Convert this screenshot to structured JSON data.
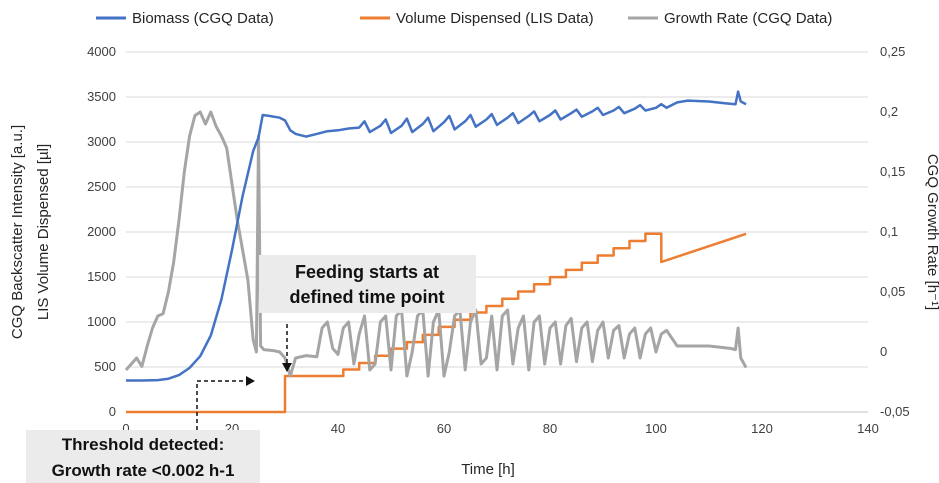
{
  "chart_data": {
    "type": "line",
    "legend_position": "top",
    "grid": {
      "horizontal": true,
      "vertical": false
    },
    "colors": {
      "biomass": "#4472C4",
      "volume": "#ED7D31",
      "growth": "#A5A5A5"
    },
    "x_axis": {
      "label": "Time [h]",
      "min": 0,
      "max": 140,
      "ticks": [
        "0",
        "20",
        "40",
        "60",
        "80",
        "100",
        "120",
        "140"
      ]
    },
    "y_left": {
      "label_outer": "CGQ Backscatter Intensity [a.u.]",
      "label_inner": "LIS Volume Dispensed [µl]",
      "min": 0,
      "max": 4000,
      "ticks": [
        "0",
        "500",
        "1000",
        "1500",
        "2000",
        "2500",
        "3000",
        "3500",
        "4000"
      ]
    },
    "y_right": {
      "label": "CGQ Growth Rate [h⁻¹]",
      "min": -0.05,
      "max": 0.25,
      "ticks": [
        "-0,05",
        "0",
        "0,05",
        "0,1",
        "0,15",
        "0,2",
        "0,25"
      ]
    },
    "series": [
      {
        "name": "Biomass (CGQ Data)",
        "axis": "left",
        "key": "biomass",
        "points": [
          [
            0,
            350
          ],
          [
            3,
            350
          ],
          [
            6,
            355
          ],
          [
            8,
            370
          ],
          [
            10,
            410
          ],
          [
            12,
            490
          ],
          [
            14,
            620
          ],
          [
            16,
            850
          ],
          [
            18,
            1250
          ],
          [
            20,
            1800
          ],
          [
            22,
            2400
          ],
          [
            24,
            2900
          ],
          [
            25,
            3050
          ],
          [
            25.8,
            3300
          ],
          [
            27,
            3290
          ],
          [
            29,
            3270
          ],
          [
            30,
            3240
          ],
          [
            31,
            3130
          ],
          [
            32,
            3090
          ],
          [
            34,
            3060
          ],
          [
            36,
            3090
          ],
          [
            38,
            3120
          ],
          [
            40,
            3130
          ],
          [
            42,
            3150
          ],
          [
            44,
            3160
          ],
          [
            45,
            3230
          ],
          [
            46,
            3110
          ],
          [
            48,
            3180
          ],
          [
            49,
            3250
          ],
          [
            50,
            3100
          ],
          [
            52,
            3180
          ],
          [
            53,
            3260
          ],
          [
            54,
            3110
          ],
          [
            56,
            3200
          ],
          [
            57,
            3270
          ],
          [
            58,
            3120
          ],
          [
            60,
            3220
          ],
          [
            61,
            3290
          ],
          [
            62,
            3140
          ],
          [
            64,
            3230
          ],
          [
            65,
            3300
          ],
          [
            66,
            3170
          ],
          [
            68,
            3250
          ],
          [
            69,
            3310
          ],
          [
            70,
            3190
          ],
          [
            72,
            3270
          ],
          [
            73,
            3320
          ],
          [
            74,
            3210
          ],
          [
            76,
            3290
          ],
          [
            77,
            3340
          ],
          [
            78,
            3230
          ],
          [
            80,
            3300
          ],
          [
            81,
            3350
          ],
          [
            82,
            3250
          ],
          [
            84,
            3320
          ],
          [
            85,
            3360
          ],
          [
            86,
            3280
          ],
          [
            88,
            3340
          ],
          [
            89,
            3380
          ],
          [
            90,
            3300
          ],
          [
            92,
            3350
          ],
          [
            93,
            3390
          ],
          [
            94,
            3320
          ],
          [
            96,
            3370
          ],
          [
            97,
            3410
          ],
          [
            98,
            3350
          ],
          [
            100,
            3380
          ],
          [
            101,
            3420
          ],
          [
            102,
            3380
          ],
          [
            104,
            3440
          ],
          [
            106,
            3460
          ],
          [
            110,
            3450
          ],
          [
            113,
            3430
          ],
          [
            115,
            3420
          ],
          [
            115.5,
            3560
          ],
          [
            116,
            3450
          ],
          [
            117,
            3420
          ]
        ]
      },
      {
        "name": "Volume Dispensed (LIS Data)",
        "axis": "left",
        "key": "volume",
        "points": [
          [
            0,
            0
          ],
          [
            30,
            0
          ],
          [
            30,
            400
          ],
          [
            41,
            400
          ],
          [
            41,
            490
          ],
          [
            44,
            490
          ],
          [
            44,
            580
          ],
          [
            47,
            580
          ],
          [
            47,
            680
          ],
          [
            50,
            680
          ],
          [
            50,
            780
          ],
          [
            53,
            780
          ],
          [
            53,
            870
          ],
          [
            56,
            870
          ],
          [
            56,
            970
          ],
          [
            59,
            970
          ],
          [
            59,
            1080
          ],
          [
            62,
            1080
          ],
          [
            62,
            1180
          ],
          [
            65,
            1180
          ],
          [
            65,
            1280
          ],
          [
            68,
            1280
          ],
          [
            68,
            1370
          ],
          [
            71,
            1370
          ],
          [
            71,
            1470
          ],
          [
            74,
            1470
          ],
          [
            74,
            1570
          ],
          [
            77,
            1570
          ],
          [
            77,
            1670
          ],
          [
            80,
            1670
          ],
          [
            80,
            1770
          ],
          [
            83,
            1770
          ],
          [
            83,
            1870
          ],
          [
            86,
            1870
          ],
          [
            86,
            1970
          ],
          [
            89,
            1970
          ],
          [
            89,
            2070
          ],
          [
            92,
            2070
          ],
          [
            92,
            2170
          ],
          [
            95,
            2170
          ],
          [
            95,
            2270
          ],
          [
            98,
            2270
          ],
          [
            98,
            2370
          ],
          [
            101,
            2370
          ],
          [
            101,
            1880
          ],
          [
            98,
            1880
          ]
        ]
      },
      {
        "name": "Growth Rate (CGQ Data)",
        "axis": "right",
        "key": "growth",
        "points": [
          [
            0,
            -0.015
          ],
          [
            2,
            -0.005
          ],
          [
            3,
            -0.012
          ],
          [
            4,
            0.005
          ],
          [
            5,
            0.02
          ],
          [
            6,
            0.03
          ],
          [
            7,
            0.032
          ],
          [
            8,
            0.05
          ],
          [
            9,
            0.075
          ],
          [
            10,
            0.11
          ],
          [
            11,
            0.15
          ],
          [
            12,
            0.18
          ],
          [
            13,
            0.197
          ],
          [
            14,
            0.2
          ],
          [
            15,
            0.19
          ],
          [
            16,
            0.2
          ],
          [
            17,
            0.188
          ],
          [
            18,
            0.18
          ],
          [
            19,
            0.17
          ],
          [
            20,
            0.14
          ],
          [
            21,
            0.11
          ],
          [
            22,
            0.085
          ],
          [
            23,
            0.06
          ],
          [
            24,
            0.01
          ],
          [
            24.6,
            0.0
          ],
          [
            25,
            0.18
          ],
          [
            25.4,
            0.005
          ],
          [
            26,
            0.002
          ],
          [
            28,
            0.001
          ],
          [
            29,
            0.0
          ],
          [
            30,
            -0.005
          ],
          [
            31,
            -0.02
          ],
          [
            32,
            -0.005
          ],
          [
            34,
            -0.003
          ],
          [
            36,
            -0.004
          ],
          [
            37,
            0.02
          ],
          [
            38,
            0.025
          ],
          [
            39,
            0.003
          ],
          [
            40,
            -0.002
          ],
          [
            41,
            0.02
          ],
          [
            42,
            0.025
          ],
          [
            43,
            -0.01
          ],
          [
            44,
            0.015
          ],
          [
            45,
            0.03
          ],
          [
            46,
            -0.015
          ],
          [
            47,
            -0.01
          ],
          [
            48,
            0.025
          ],
          [
            49,
            0.03
          ],
          [
            50,
            -0.015
          ],
          [
            51,
            0.03
          ],
          [
            52,
            0.035
          ],
          [
            53,
            -0.02
          ],
          [
            54,
            0.0
          ],
          [
            55,
            0.03
          ],
          [
            56,
            0.035
          ],
          [
            57,
            -0.02
          ],
          [
            58,
            0.025
          ],
          [
            59,
            0.035
          ],
          [
            60,
            -0.02
          ],
          [
            61,
            0.0
          ],
          [
            62,
            0.03
          ],
          [
            63,
            0.035
          ],
          [
            64,
            -0.015
          ],
          [
            65,
            0.025
          ],
          [
            66,
            0.035
          ],
          [
            67,
            -0.01
          ],
          [
            68,
            -0.005
          ],
          [
            69,
            0.03
          ],
          [
            70,
            -0.015
          ],
          [
            71,
            0.03
          ],
          [
            72,
            0.035
          ],
          [
            73,
            -0.01
          ],
          [
            74,
            0.02
          ],
          [
            75,
            0.03
          ],
          [
            76,
            -0.015
          ],
          [
            77,
            0.025
          ],
          [
            78,
            0.03
          ],
          [
            79,
            -0.01
          ],
          [
            80,
            0.02
          ],
          [
            81,
            0.025
          ],
          [
            82,
            -0.01
          ],
          [
            83,
            0.022
          ],
          [
            84,
            0.028
          ],
          [
            85,
            -0.008
          ],
          [
            86,
            0.02
          ],
          [
            87,
            0.025
          ],
          [
            88,
            -0.008
          ],
          [
            89,
            0.018
          ],
          [
            90,
            0.025
          ],
          [
            91,
            -0.005
          ],
          [
            92,
            0.018
          ],
          [
            93,
            0.022
          ],
          [
            94,
            -0.005
          ],
          [
            95,
            0.015
          ],
          [
            96,
            0.02
          ],
          [
            97,
            -0.005
          ],
          [
            98,
            0.015
          ],
          [
            99,
            0.02
          ],
          [
            100,
            0.0
          ],
          [
            101,
            0.015
          ],
          [
            102,
            0.018
          ],
          [
            104,
            0.005
          ],
          [
            106,
            0.005
          ],
          [
            110,
            0.005
          ],
          [
            114,
            0.003
          ],
          [
            115,
            0.002
          ],
          [
            115.5,
            0.02
          ],
          [
            116,
            -0.005
          ],
          [
            117,
            -0.013
          ]
        ]
      }
    ],
    "annotations": [
      {
        "key": "feeding",
        "lines": [
          "Feeding starts at",
          "defined time point"
        ]
      },
      {
        "key": "threshold",
        "lines": [
          "Threshold detected:",
          "Growth rate <0.002 h-1"
        ]
      }
    ]
  }
}
